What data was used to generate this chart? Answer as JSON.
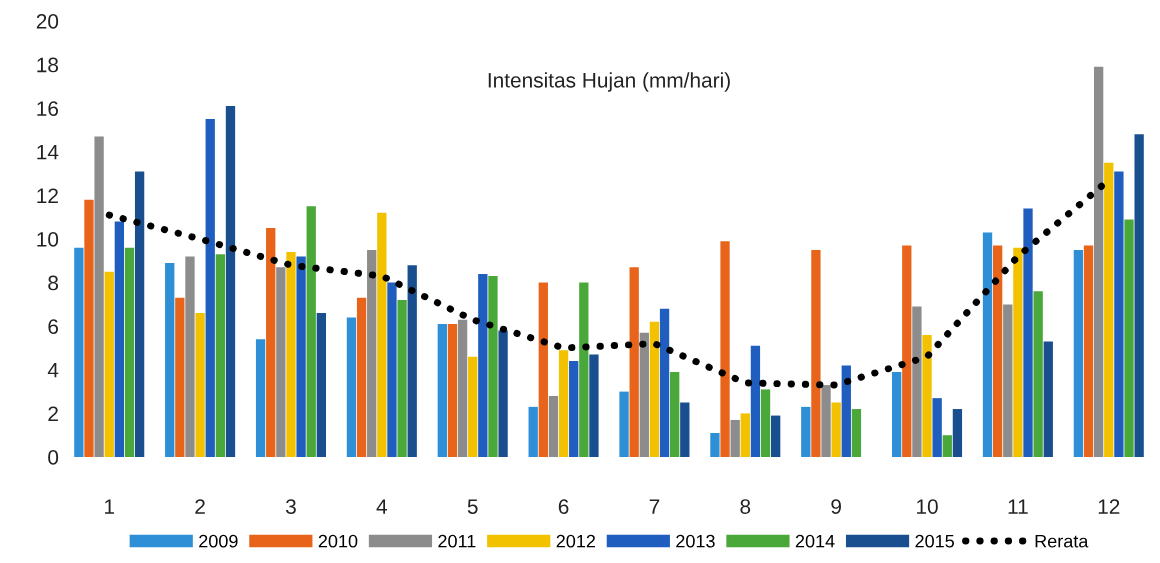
{
  "chart_data": {
    "type": "bar",
    "title": "Intensitas Hujan (mm/hari)",
    "categories": [
      "1",
      "2",
      "3",
      "4",
      "5",
      "6",
      "7",
      "8",
      "9",
      "10",
      "11",
      "12"
    ],
    "series": [
      {
        "name": "2009",
        "color": "#2e8fd6",
        "values": [
          9.6,
          8.9,
          5.4,
          6.4,
          6.1,
          2.3,
          3.0,
          1.1,
          2.3,
          3.9,
          10.3,
          9.5
        ]
      },
      {
        "name": "2010",
        "color": "#e8641b",
        "values": [
          11.8,
          7.3,
          10.5,
          7.3,
          6.1,
          8.0,
          8.7,
          9.9,
          9.5,
          9.7,
          9.7,
          9.7
        ]
      },
      {
        "name": "2011",
        "color": "#8c8c8c",
        "values": [
          14.7,
          9.2,
          8.7,
          9.5,
          6.3,
          2.8,
          5.7,
          1.7,
          3.3,
          6.9,
          7.0,
          17.9
        ]
      },
      {
        "name": "2012",
        "color": "#f2c200",
        "values": [
          8.5,
          6.6,
          9.4,
          11.2,
          4.6,
          4.9,
          6.2,
          2.0,
          2.5,
          5.6,
          9.6,
          13.5
        ]
      },
      {
        "name": "2013",
        "color": "#1f5dbf",
        "values": [
          10.8,
          15.5,
          9.2,
          8.0,
          8.4,
          4.4,
          6.8,
          5.1,
          4.2,
          2.7,
          11.4,
          13.1
        ]
      },
      {
        "name": "2014",
        "color": "#4aa83a",
        "values": [
          9.6,
          9.3,
          11.5,
          7.2,
          8.3,
          8.0,
          3.9,
          3.1,
          2.2,
          1.0,
          7.6,
          10.9
        ]
      },
      {
        "name": "2015",
        "color": "#1a4f8f",
        "values": [
          13.1,
          16.1,
          6.6,
          8.8,
          5.8,
          4.7,
          2.5,
          1.9,
          null,
          2.2,
          5.3,
          14.8
        ]
      },
      {
        "name": "Rerata",
        "type": "line",
        "color": "#000000",
        "line_style": "dotted",
        "values": [
          11.1,
          10.0,
          8.8,
          8.3,
          6.3,
          5.0,
          5.2,
          3.4,
          3.3,
          4.6,
          9.2,
          12.7
        ]
      }
    ],
    "ylim": [
      0,
      20
    ],
    "yticks": [
      0,
      2,
      4,
      6,
      8,
      10,
      12,
      14,
      16,
      18,
      20
    ],
    "grid": false,
    "legend": "bottom"
  }
}
